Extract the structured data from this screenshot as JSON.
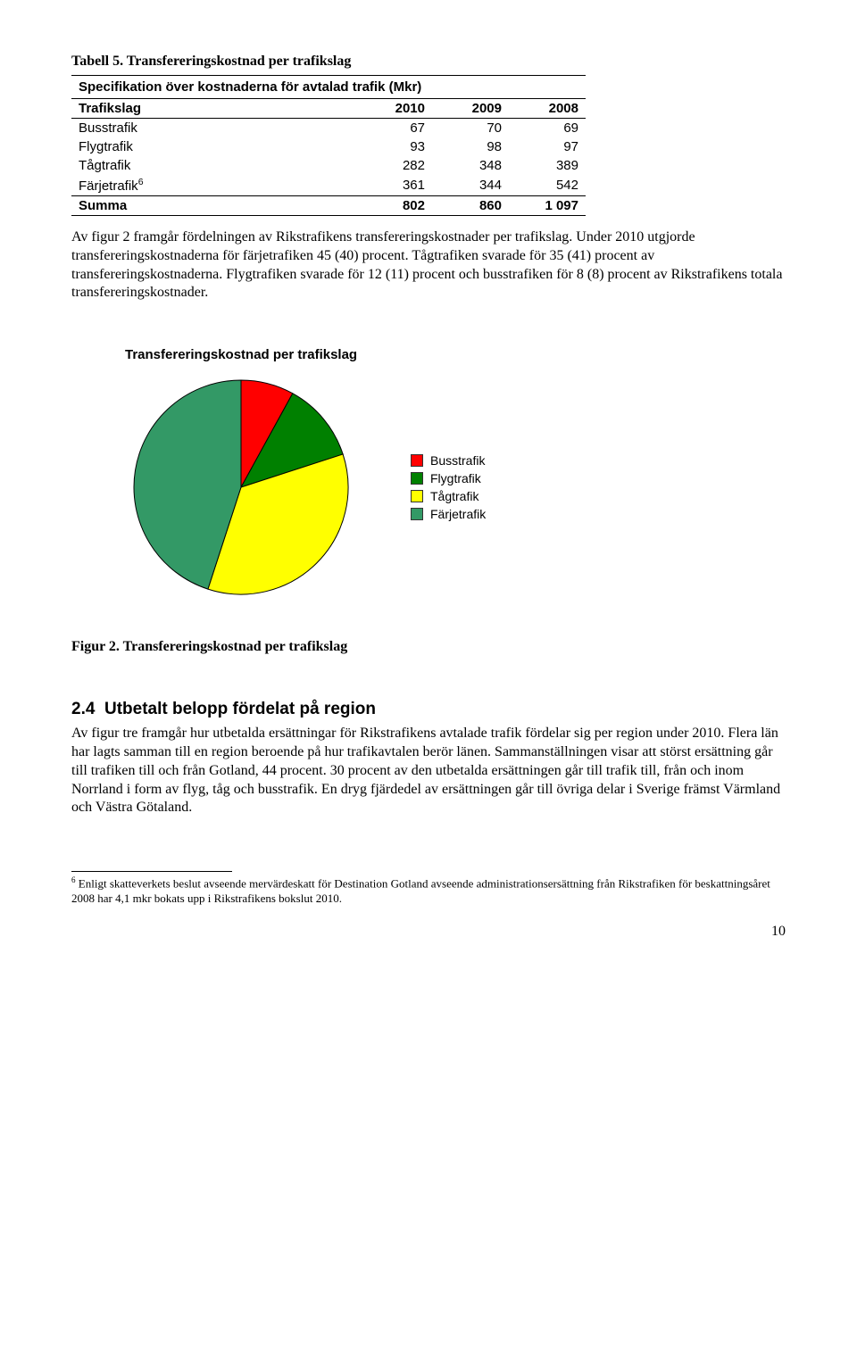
{
  "table": {
    "caption": "Tabell 5. Transfereringskostnad per trafikslag",
    "spec_title": "Specifikation över kostnaderna för avtalad trafik (Mkr)",
    "col_label": "Trafikslag",
    "years": [
      "2010",
      "2009",
      "2008"
    ],
    "rows": [
      {
        "label": "Busstrafik",
        "vals": [
          "67",
          "70",
          "69"
        ]
      },
      {
        "label": "Flygtrafik",
        "vals": [
          "93",
          "98",
          "97"
        ]
      },
      {
        "label": "Tågtrafik",
        "vals": [
          "282",
          "348",
          "389"
        ]
      },
      {
        "label": "Färjetrafik",
        "vals": [
          "361",
          "344",
          "542"
        ],
        "sup": "6"
      }
    ],
    "sum_label": "Summa",
    "sum_vals": [
      "802",
      "860",
      "1 097"
    ]
  },
  "para1": "Av figur 2 framgår fördelningen av Rikstrafikens transfereringskostnader per trafikslag. Under 2010 utgjorde transfereringskostnaderna för färjetrafiken 45 (40) procent. Tågtrafiken svarade för 35 (41) procent av transfereringskostnaderna. Flygtrafiken svarade för 12 (11) procent och busstrafiken för 8 (8) procent av Rikstrafikens totala transfereringskostnader.",
  "chart": {
    "type": "pie",
    "title": "Transfereringskostnad per trafikslag",
    "slices": [
      {
        "label": "Busstrafik",
        "value": 8,
        "color": "#ff0000"
      },
      {
        "label": "Flygtrafik",
        "value": 12,
        "color": "#008000"
      },
      {
        "label": "Tågtrafik",
        "value": 35,
        "color": "#ffff00"
      },
      {
        "label": "Färjetrafik",
        "value": 45,
        "color": "#339966"
      }
    ],
    "stroke": "#000000",
    "background": "#ffffff"
  },
  "fig_caption": "Figur 2. Transfereringskostnad per trafikslag",
  "section": {
    "num": "2.4",
    "title": "Utbetalt belopp fördelat på region",
    "body": "Av figur tre framgår hur utbetalda ersättningar för Rikstrafikens avtalade trafik fördelar sig per region under 2010. Flera län har lagts samman till en region beroende på hur trafikavtalen berör länen. Sammanställningen visar att störst ersättning går till trafiken till och från Gotland, 44 procent. 30 procent av den utbetalda ersättningen går till trafik till, från och inom Norrland i form av flyg, tåg och busstrafik. En dryg fjärdedel av ersättningen går till övriga delar i Sverige främst Värmland och Västra Götaland."
  },
  "footnote": {
    "marker": "6",
    "text": " Enligt skatteverkets beslut avseende mervärdeskatt för Destination Gotland avseende administrationsersättning från Rikstrafiken för beskattningsåret 2008 har 4,1 mkr bokats upp i Rikstrafikens bokslut 2010."
  },
  "page_number": "10"
}
